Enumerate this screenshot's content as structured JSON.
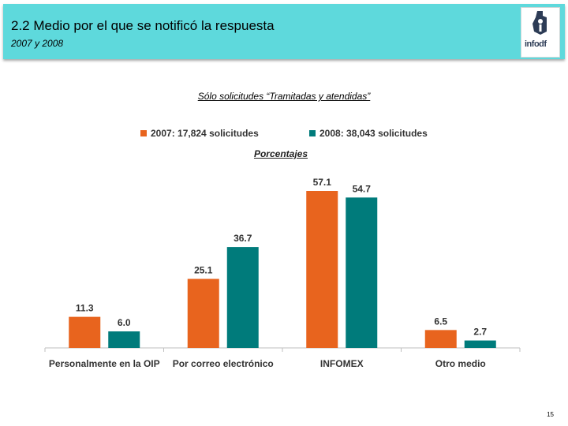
{
  "header": {
    "title": "2.2 Medio por el que se notificó la respuesta",
    "subtitle": "2007 y 2008",
    "logo_text": "infodf",
    "logo_icon": "infodf-logo-icon"
  },
  "page_number": "15",
  "colors": {
    "header_bg": "#5ed9dc",
    "series_2007": "#e8641e",
    "series_2008": "#007b7b"
  },
  "chart_data": {
    "type": "bar",
    "title": "Sólo solicitudes “Tramitadas y atendidas”",
    "subtitle": "Porcentajes",
    "categories": [
      "Personalmente en la OIP",
      "Por correo electrónico",
      "INFOMEX",
      "Otro medio"
    ],
    "series": [
      {
        "name": "2007: 17,824 solicitudes",
        "color": "#e8641e",
        "values": [
          11.3,
          25.1,
          57.1,
          6.5
        ],
        "labels": [
          "11.3",
          "25.1",
          "57.1",
          "6.5"
        ]
      },
      {
        "name": "2008: 38,043 solicitudes",
        "color": "#007b7b",
        "values": [
          6.0,
          36.7,
          54.7,
          2.7
        ],
        "labels": [
          "6.0",
          "36.7",
          "54.7",
          "2.7"
        ]
      }
    ],
    "ylim": [
      0,
      57.1
    ],
    "legend_position": "top",
    "grid": false
  }
}
